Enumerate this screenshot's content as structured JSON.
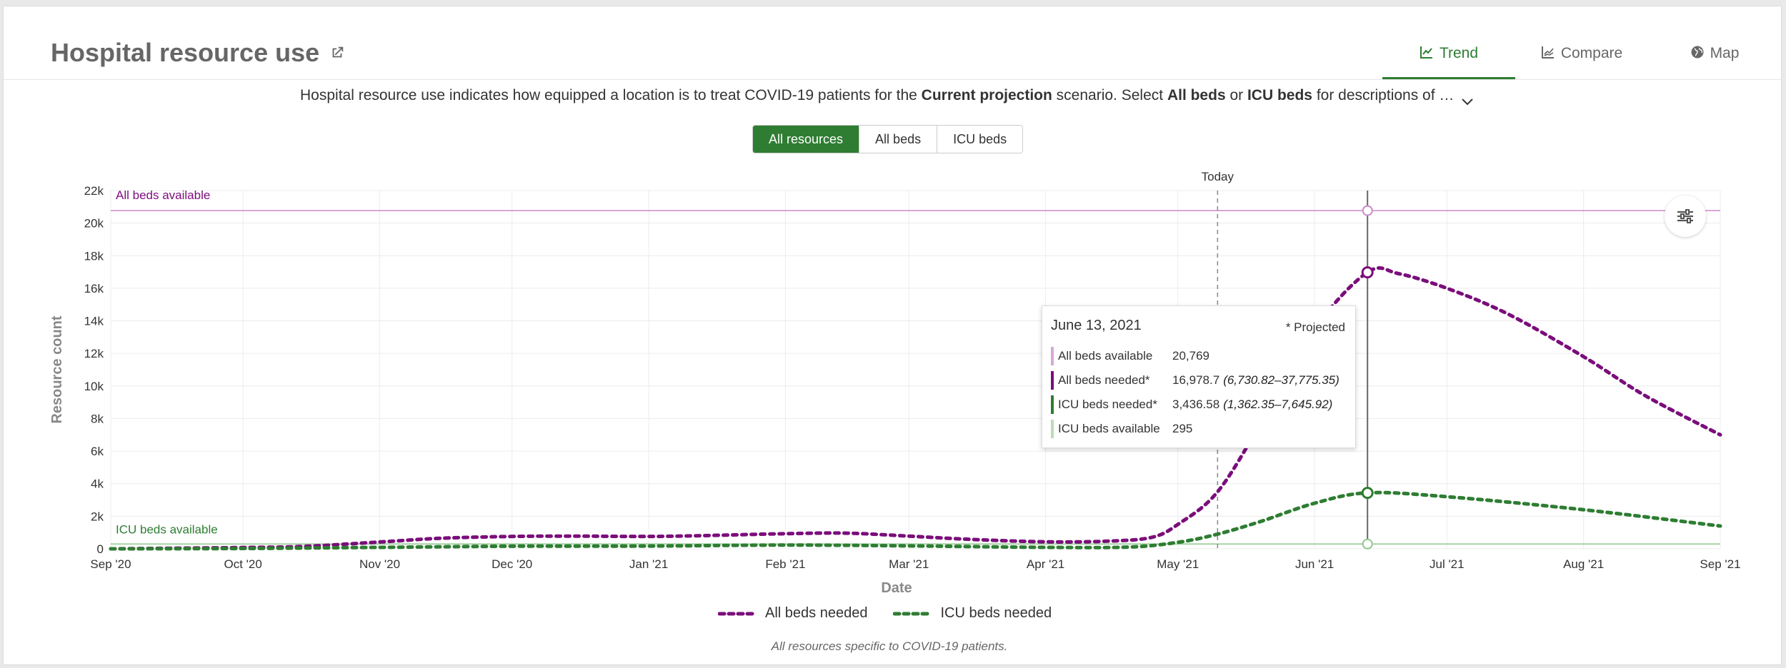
{
  "header": {
    "title": "Hospital resource use",
    "tabs": [
      {
        "label": "Trend",
        "icon": "line-chart-icon",
        "active": true
      },
      {
        "label": "Compare",
        "icon": "compare-chart-icon",
        "active": false
      },
      {
        "label": "Map",
        "icon": "globe-icon",
        "active": false
      }
    ]
  },
  "description": {
    "part1": "Hospital resource use indicates how equipped a location is to treat COVID-19 patients for the ",
    "bold1": "Current projection",
    "part2": " scenario. Select ",
    "bold2": "All beds",
    "part3": " or ",
    "bold3": "ICU beds",
    "part4": " for descriptions of …"
  },
  "filters": {
    "options": [
      "All resources",
      "All beds",
      "ICU beds"
    ],
    "selected": "All resources"
  },
  "tooltip": {
    "date": "June 13, 2021",
    "note": "* Projected",
    "rows": [
      {
        "label": "All beds available",
        "value": "20,769",
        "range": "",
        "color": "#d9a6d9"
      },
      {
        "label": "All beds needed*",
        "value": "16,978.7",
        "range": "(6,730.82–37,775.35)",
        "color": "#7b0d7b"
      },
      {
        "label": "ICU beds needed*",
        "value": "3,436.58",
        "range": "(1,362.35–7,645.92)",
        "color": "#2e7d32"
      },
      {
        "label": "ICU beds available",
        "value": "295",
        "range": "",
        "color": "#b8dcb8"
      }
    ]
  },
  "footnote": "All resources specific to COVID-19 patients.",
  "colors": {
    "all_beds": "#7b0d7b",
    "all_beds_available": "#c98ac9",
    "icu": "#2e7d32",
    "icu_available": "#8ec88e",
    "accent": "#2e7d32"
  },
  "chart_data": {
    "type": "line",
    "xlabel": "Date",
    "ylabel": "Resource count",
    "x_ticks": [
      "Sep '20",
      "Oct '20",
      "Nov '20",
      "Dec '20",
      "Jan '21",
      "Feb '21",
      "Mar '21",
      "Apr '21",
      "May '21",
      "Jun '21",
      "Jul '21",
      "Aug '21",
      "Sep '21"
    ],
    "y_ticks": [
      "0",
      "2k",
      "4k",
      "6k",
      "8k",
      "10k",
      "12k",
      "14k",
      "16k",
      "18k",
      "20k",
      "22k"
    ],
    "ylim": [
      0,
      22000
    ],
    "xlim": [
      "2020-09-01",
      "2021-09-01"
    ],
    "today": "2021-05-10",
    "today_label": "Today",
    "hover_date": "2021-06-13",
    "reference_lines": [
      {
        "name": "All beds available",
        "value": 20769
      },
      {
        "name": "ICU beds available",
        "value": 295
      }
    ],
    "series": [
      {
        "name": "All beds needed",
        "points": [
          [
            "2020-09-01",
            0
          ],
          [
            "2020-10-01",
            80
          ],
          [
            "2020-10-15",
            150
          ],
          [
            "2020-11-01",
            420
          ],
          [
            "2020-11-15",
            650
          ],
          [
            "2020-12-01",
            760
          ],
          [
            "2020-12-15",
            780
          ],
          [
            "2021-01-01",
            760
          ],
          [
            "2021-01-15",
            820
          ],
          [
            "2021-02-01",
            930
          ],
          [
            "2021-02-15",
            960
          ],
          [
            "2021-03-01",
            780
          ],
          [
            "2021-03-15",
            580
          ],
          [
            "2021-04-01",
            430
          ],
          [
            "2021-04-15",
            470
          ],
          [
            "2021-04-25",
            700
          ],
          [
            "2021-05-01",
            1500
          ],
          [
            "2021-05-10",
            3500
          ],
          [
            "2021-05-20",
            7800
          ],
          [
            "2021-06-01",
            13500
          ],
          [
            "2021-06-13",
            16978.7
          ],
          [
            "2021-06-20",
            16900
          ],
          [
            "2021-07-01",
            16000
          ],
          [
            "2021-07-15",
            14400
          ],
          [
            "2021-08-01",
            11800
          ],
          [
            "2021-08-15",
            9400
          ],
          [
            "2021-09-01",
            7000
          ]
        ]
      },
      {
        "name": "ICU beds needed",
        "points": [
          [
            "2020-09-01",
            0
          ],
          [
            "2020-10-01",
            20
          ],
          [
            "2020-11-01",
            90
          ],
          [
            "2020-12-01",
            160
          ],
          [
            "2021-01-01",
            170
          ],
          [
            "2021-02-01",
            230
          ],
          [
            "2021-03-01",
            180
          ],
          [
            "2021-04-01",
            90
          ],
          [
            "2021-04-20",
            110
          ],
          [
            "2021-05-01",
            400
          ],
          [
            "2021-05-10",
            900
          ],
          [
            "2021-05-20",
            1700
          ],
          [
            "2021-06-01",
            2800
          ],
          [
            "2021-06-13",
            3436.58
          ],
          [
            "2021-07-01",
            3200
          ],
          [
            "2021-08-01",
            2400
          ],
          [
            "2021-09-01",
            1400
          ]
        ]
      }
    ]
  }
}
